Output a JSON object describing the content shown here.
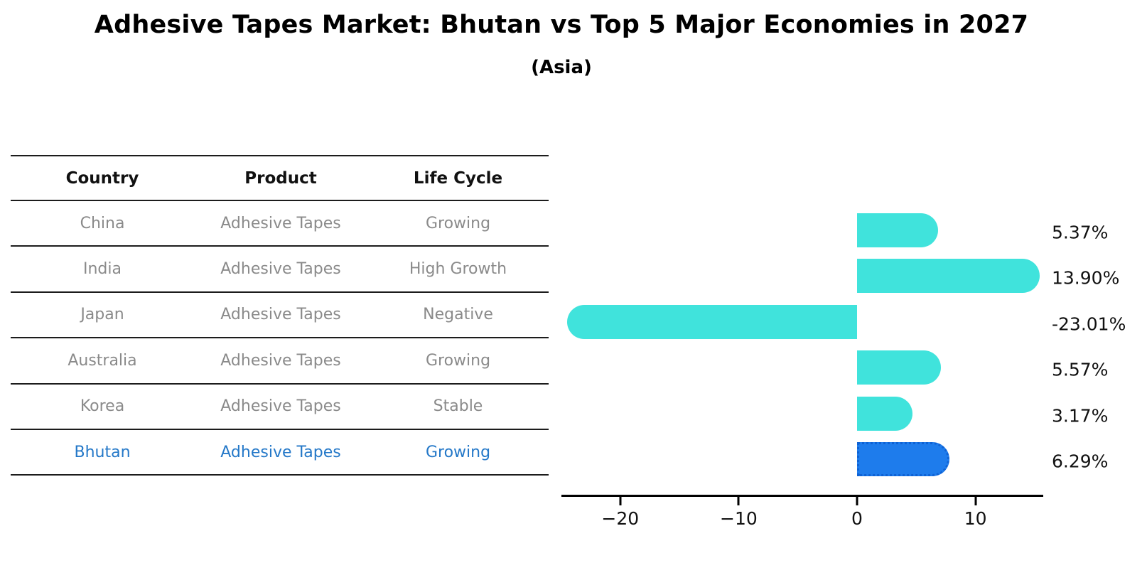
{
  "title": "Adhesive Tapes Market: Bhutan vs Top 5 Major Economies in 2027",
  "subtitle": "(Asia)",
  "table": {
    "headers": [
      "Country",
      "Product",
      "Life Cycle"
    ],
    "rows": [
      {
        "country": "China",
        "product": "Adhesive Tapes",
        "life_cycle": "Growing",
        "highlight": false
      },
      {
        "country": "India",
        "product": "Adhesive Tapes",
        "life_cycle": "High Growth",
        "highlight": false
      },
      {
        "country": "Japan",
        "product": "Adhesive Tapes",
        "life_cycle": "Negative",
        "highlight": false
      },
      {
        "country": "Australia",
        "product": "Adhesive Tapes",
        "life_cycle": "Growing",
        "highlight": false
      },
      {
        "country": "Korea",
        "product": "Adhesive Tapes",
        "life_cycle": "Stable",
        "highlight": false
      },
      {
        "country": "Bhutan",
        "product": "Adhesive Tapes",
        "life_cycle": "Growing",
        "highlight": true
      }
    ]
  },
  "chart_data": {
    "type": "bar",
    "orientation": "horizontal",
    "title": "",
    "xlabel": "",
    "ylabel": "",
    "categories": [
      "China",
      "India",
      "Japan",
      "Australia",
      "Korea",
      "Bhutan"
    ],
    "values": [
      5.37,
      13.9,
      -23.01,
      5.57,
      3.17,
      6.29
    ],
    "value_labels": [
      "5.37%",
      "13.90%",
      "-23.01%",
      "5.57%",
      "3.17%",
      "6.29%"
    ],
    "xlim": [
      -25.0,
      15.7
    ],
    "xtick_values": [
      -20,
      -10,
      0,
      10
    ],
    "xtick_labels": [
      "−20",
      "−10",
      "0",
      "10"
    ],
    "grid": false,
    "legend": false,
    "bar_color": "#40E3DC",
    "highlight_index": 5,
    "highlight_color": "#1E7CEC",
    "highlight_border_color": "#0F62D4",
    "axis_color": "#000000",
    "text_color": "#111111"
  }
}
